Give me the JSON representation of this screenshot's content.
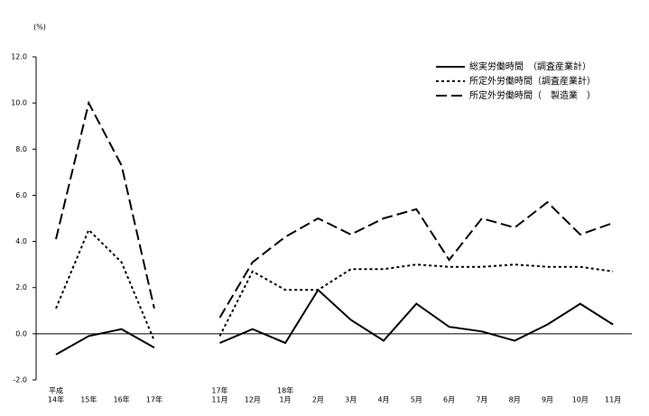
{
  "chart_data": {
    "type": "line",
    "y_unit": "(%)",
    "category_prefixes": [
      "平成",
      null,
      null,
      null,
      null,
      "17年",
      null,
      "18年",
      null,
      null,
      null,
      null,
      null,
      null,
      null,
      null,
      null,
      null
    ],
    "categories": [
      "14年",
      "15年",
      "16年",
      "17年",
      null,
      "11月",
      "12月",
      "1月",
      "2月",
      "3月",
      "4月",
      "5月",
      "6月",
      "7月",
      "8月",
      "9月",
      "10月",
      "11月"
    ],
    "series": [
      {
        "name": "総実労働時間　（調査産業計）",
        "color": "#000000",
        "dash": "solid",
        "values": [
          -0.9,
          -0.1,
          0.2,
          -0.6,
          null,
          -0.4,
          0.2,
          -0.4,
          1.9,
          0.6,
          -0.3,
          1.3,
          0.3,
          0.1,
          -0.3,
          0.4,
          1.3,
          0.4
        ]
      },
      {
        "name": "所定外労働時間（調査産業計）",
        "color": "#000000",
        "dash": "dotted",
        "values": [
          1.1,
          4.5,
          3.1,
          -0.3,
          null,
          -0.1,
          2.7,
          1.9,
          1.9,
          2.8,
          2.8,
          3.0,
          2.9,
          2.9,
          3.0,
          2.9,
          2.9,
          2.7
        ]
      },
      {
        "name": "所定外労働時間（　製造業　）",
        "color": "#000000",
        "dash": "dashed",
        "values": [
          4.1,
          10.0,
          7.3,
          1.1,
          null,
          0.7,
          3.1,
          4.2,
          5.0,
          4.3,
          5.0,
          5.4,
          3.2,
          5.0,
          4.6,
          5.7,
          4.3,
          4.8
        ]
      }
    ],
    "ylim": [
      -2,
      12
    ],
    "yticks": [
      {
        "value": -2,
        "label": "-2.0"
      },
      {
        "value": 0,
        "label": "0.0"
      },
      {
        "value": 2,
        "label": "2.0"
      },
      {
        "value": 4,
        "label": "4.0"
      },
      {
        "value": 6,
        "label": "6.0"
      },
      {
        "value": 8,
        "label": "8.0"
      },
      {
        "value": 10,
        "label": "10.0"
      },
      {
        "value": 12,
        "label": "12.0"
      }
    ],
    "grid": false
  }
}
